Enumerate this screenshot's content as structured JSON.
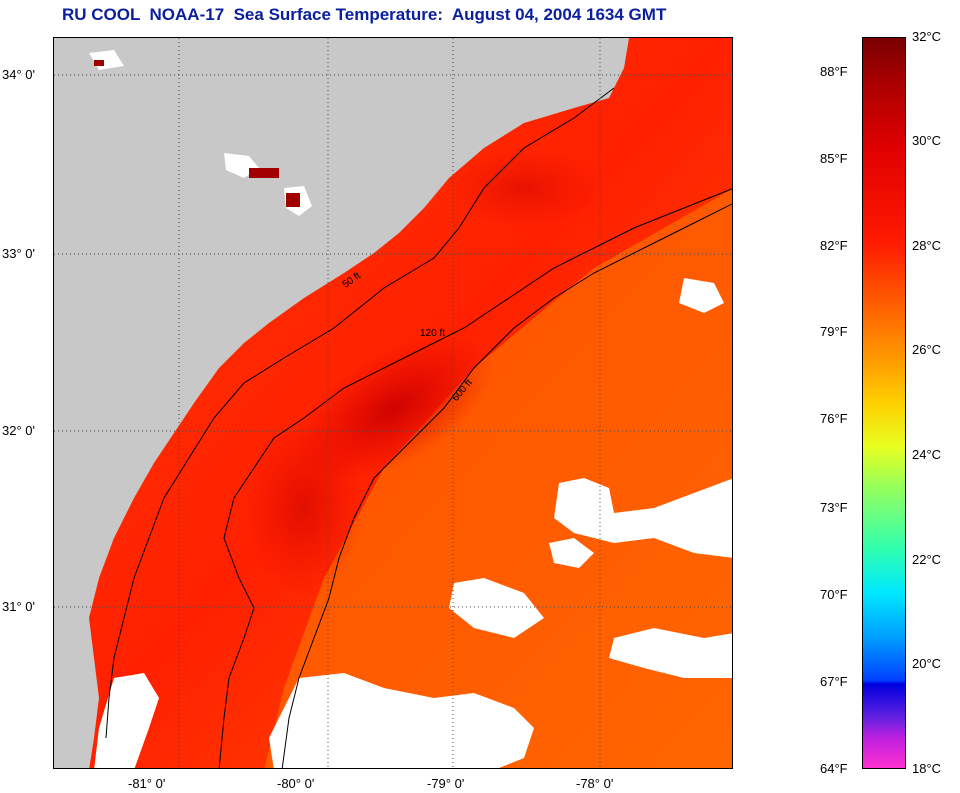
{
  "title": "RU COOL  NOAA-17  Sea Surface Temperature:  August 04, 2004 1634 GMT",
  "map": {
    "latitude_labels": [
      "34° 0'",
      "33° 0'",
      "32° 0'",
      "31° 0'"
    ],
    "longitude_labels": [
      "-81° 0'",
      "-80° 0'",
      "-79° 0'",
      "-78° 0'"
    ],
    "contour_labels": [
      "50 ft",
      "120 ft",
      "600 ft"
    ],
    "colors": {
      "land": "#c8c8c8",
      "cloud": "#ffffff",
      "sst_warm": "#ff2a00",
      "sst_mid": "#ff5a00",
      "sst_hot": "#d00000",
      "contour": "#000000"
    }
  },
  "colorbar": {
    "fahrenheit_labels": [
      "88°F",
      "85°F",
      "82°F",
      "79°F",
      "76°F",
      "73°F",
      "70°F",
      "67°F",
      "64°F"
    ],
    "celsius_labels": [
      "32°C",
      "30°C",
      "28°C",
      "26°C",
      "24°C",
      "22°C",
      "20°C",
      "18°C"
    ]
  }
}
